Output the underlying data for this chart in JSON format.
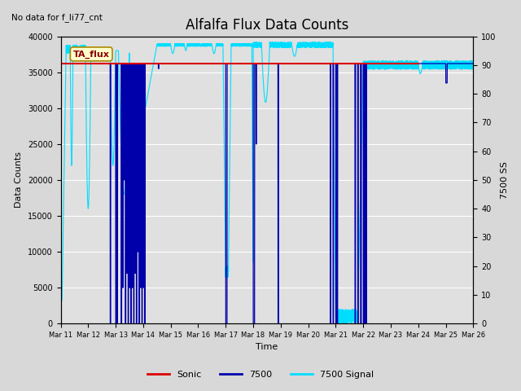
{
  "title": "Alfalfa Flux Data Counts",
  "ylabel_left": "Data Counts",
  "ylabel_right": "7500 SS",
  "xlabel": "Time",
  "no_data_text": "No data for f_li77_cnt",
  "annotation_text": "TA_flux",
  "ylim_left": [
    0,
    40000
  ],
  "ylim_right": [
    0,
    100
  ],
  "yticks_left": [
    0,
    5000,
    10000,
    15000,
    20000,
    25000,
    30000,
    35000,
    40000
  ],
  "yticks_right": [
    0,
    10,
    20,
    30,
    40,
    50,
    60,
    70,
    80,
    90,
    100
  ],
  "xtick_labels": [
    "Mar 11",
    "Mar 12",
    "Mar 13",
    "Mar 14",
    "Mar 15",
    "Mar 16",
    "Mar 17",
    "Mar 18",
    "Mar 19",
    "Mar 20",
    "Mar 21",
    "Mar 22",
    "Mar 23",
    "Mar 24",
    "Mar 25",
    "Mar 26"
  ],
  "sonic_color": "#dd0000",
  "blue_color": "#0000aa",
  "cyan_color": "#00ddff",
  "bg_color": "#e8e8e8",
  "plot_bg_color": "#e0e0e0",
  "legend_labels": [
    "Sonic",
    "7500",
    "7500 Signal"
  ],
  "title_fontsize": 12,
  "label_fontsize": 8,
  "tick_fontsize": 7,
  "sonic_level": 36200,
  "figsize": [
    6.4,
    4.8
  ],
  "dpi": 100
}
